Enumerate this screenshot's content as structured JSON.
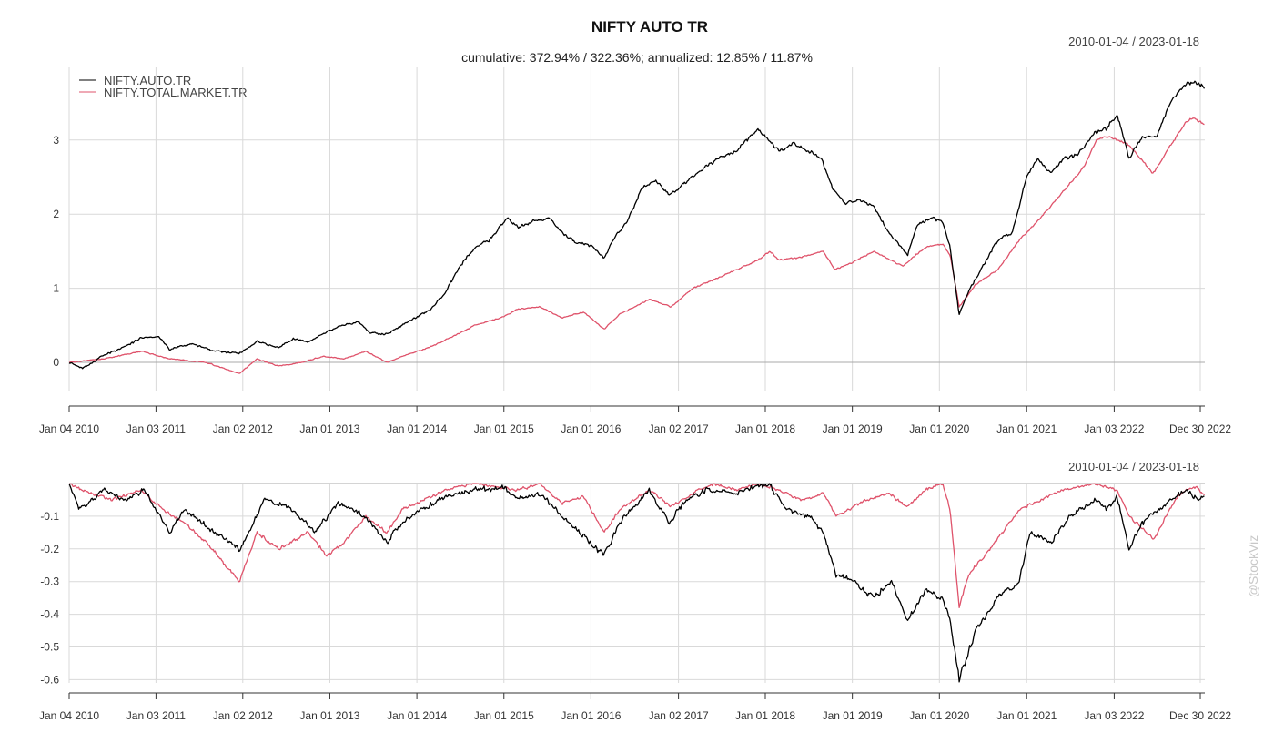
{
  "chart": {
    "title": "NIFTY AUTO TR",
    "subtitle": "cumulative: 372.94% / 322.36%; annualized: 12.85% / 11.87%",
    "date_range_top": "2010-01-04 / 2023-01-18",
    "date_range_bottom": "2010-01-04 / 2023-01-18",
    "watermark": "@StockViz"
  },
  "chart_data": [
    {
      "type": "line",
      "panel": "cumulative returns",
      "title": "NIFTY AUTO TR",
      "subtitle": "cumulative: 372.94% / 322.36%; annualized: 12.85% / 11.87%",
      "date_range": "2010-01-04 / 2023-01-18",
      "xlabel": "",
      "ylabel": "",
      "x_range": [
        "2010-01-04",
        "2023-01-18"
      ],
      "ylim": [
        -0.38,
        3.98
      ],
      "y_ticks": [
        0,
        1,
        2,
        3
      ],
      "x_tick_labels": [
        "Jan 04 2010",
        "Jan 03 2011",
        "Jan 02 2012",
        "Jan 01 2013",
        "Jan 01 2014",
        "Jan 01 2015",
        "Jan 01 2016",
        "Jan 02 2017",
        "Jan 01 2018",
        "Jan 01 2019",
        "Jan 01 2020",
        "Jan 01 2021",
        "Jan 03 2022",
        "Dec 30 2022"
      ],
      "x_tick_dates": [
        "2010-01-04",
        "2011-01-03",
        "2012-01-02",
        "2013-01-01",
        "2014-01-01",
        "2015-01-01",
        "2016-01-01",
        "2017-01-02",
        "2018-01-01",
        "2019-01-01",
        "2020-01-01",
        "2021-01-01",
        "2022-01-03",
        "2022-12-30"
      ],
      "grid": true,
      "legend_position": "top-left",
      "series": [
        {
          "name": "NIFTY.AUTO.TR",
          "color": "#000000",
          "x": [
            "2010-01-04",
            "2010-03-01",
            "2010-06-01",
            "2010-09-01",
            "2010-11-01",
            "2011-01-15",
            "2011-03-01",
            "2011-06-01",
            "2011-09-01",
            "2011-12-20",
            "2012-03-01",
            "2012-06-01",
            "2012-08-01",
            "2012-10-01",
            "2012-12-01",
            "2013-02-01",
            "2013-05-01",
            "2013-06-15",
            "2013-08-25",
            "2013-11-01",
            "2014-01-01",
            "2014-03-01",
            "2014-05-01",
            "2014-07-01",
            "2014-09-01",
            "2014-11-01",
            "2015-01-15",
            "2015-03-01",
            "2015-05-01",
            "2015-07-15",
            "2015-09-01",
            "2015-11-01",
            "2016-01-01",
            "2016-02-25",
            "2016-04-01",
            "2016-06-01",
            "2016-08-01",
            "2016-10-01",
            "2016-11-25",
            "2017-01-01",
            "2017-03-01",
            "2017-05-01",
            "2017-07-01",
            "2017-09-01",
            "2017-11-01",
            "2017-12-01",
            "2018-01-10",
            "2018-03-01",
            "2018-05-01",
            "2018-07-01",
            "2018-08-25",
            "2018-10-10",
            "2018-12-01",
            "2019-02-01",
            "2019-04-01",
            "2019-06-01",
            "2019-08-20",
            "2019-10-01",
            "2019-12-01",
            "2020-01-15",
            "2020-02-15",
            "2020-03-24",
            "2020-05-01",
            "2020-07-01",
            "2020-09-01",
            "2020-11-01",
            "2021-01-01",
            "2021-02-15",
            "2021-04-15",
            "2021-06-01",
            "2021-08-01",
            "2021-10-15",
            "2021-12-01",
            "2022-01-15",
            "2022-03-07",
            "2022-05-01",
            "2022-07-01",
            "2022-09-01",
            "2022-11-01",
            "2022-12-01",
            "2023-01-18"
          ],
          "values": [
            0.0,
            -0.08,
            0.1,
            0.22,
            0.33,
            0.35,
            0.18,
            0.25,
            0.16,
            0.12,
            0.28,
            0.2,
            0.32,
            0.28,
            0.38,
            0.48,
            0.55,
            0.4,
            0.38,
            0.5,
            0.62,
            0.72,
            0.95,
            1.3,
            1.55,
            1.65,
            1.95,
            1.82,
            1.9,
            1.95,
            1.75,
            1.62,
            1.58,
            1.4,
            1.65,
            1.9,
            2.35,
            2.45,
            2.25,
            2.35,
            2.5,
            2.65,
            2.78,
            2.85,
            3.05,
            3.15,
            3.02,
            2.85,
            2.95,
            2.85,
            2.75,
            2.35,
            2.15,
            2.2,
            2.1,
            1.75,
            1.45,
            1.85,
            1.95,
            1.9,
            1.55,
            0.65,
            0.95,
            1.3,
            1.65,
            1.75,
            2.5,
            2.75,
            2.55,
            2.75,
            2.8,
            3.1,
            3.15,
            3.35,
            2.75,
            3.05,
            3.05,
            3.55,
            3.75,
            3.8,
            3.7
          ]
        },
        {
          "name": "NIFTY.TOTAL.MARKET.TR",
          "color": "#df536b",
          "x": [
            "2010-01-04",
            "2010-06-01",
            "2010-11-01",
            "2011-03-01",
            "2011-08-01",
            "2011-12-20",
            "2012-03-01",
            "2012-06-01",
            "2012-09-01",
            "2012-12-01",
            "2013-03-01",
            "2013-06-01",
            "2013-08-28",
            "2013-11-01",
            "2014-02-01",
            "2014-05-01",
            "2014-09-01",
            "2015-01-01",
            "2015-03-01",
            "2015-06-01",
            "2015-09-01",
            "2015-12-01",
            "2016-02-25",
            "2016-05-01",
            "2016-09-01",
            "2016-12-01",
            "2017-03-01",
            "2017-06-01",
            "2017-09-01",
            "2017-12-01",
            "2018-01-20",
            "2018-03-01",
            "2018-06-01",
            "2018-09-01",
            "2018-10-20",
            "2019-01-01",
            "2019-04-01",
            "2019-08-01",
            "2019-11-01",
            "2020-01-15",
            "2020-02-15",
            "2020-03-24",
            "2020-06-01",
            "2020-09-01",
            "2020-12-01",
            "2021-03-01",
            "2021-06-01",
            "2021-09-01",
            "2021-10-20",
            "2021-12-01",
            "2022-03-01",
            "2022-06-15",
            "2022-09-01",
            "2022-11-01",
            "2022-12-01",
            "2023-01-18"
          ],
          "values": [
            0.0,
            0.05,
            0.15,
            0.05,
            0.0,
            -0.15,
            0.05,
            -0.05,
            0.0,
            0.08,
            0.05,
            0.15,
            0.0,
            0.08,
            0.18,
            0.3,
            0.5,
            0.62,
            0.72,
            0.75,
            0.6,
            0.68,
            0.45,
            0.65,
            0.85,
            0.75,
            1.0,
            1.12,
            1.25,
            1.38,
            1.5,
            1.38,
            1.42,
            1.5,
            1.25,
            1.35,
            1.5,
            1.3,
            1.55,
            1.6,
            1.45,
            0.75,
            1.05,
            1.25,
            1.65,
            1.95,
            2.3,
            2.65,
            3.0,
            3.05,
            2.95,
            2.55,
            2.95,
            3.25,
            3.3,
            3.2
          ]
        }
      ]
    },
    {
      "type": "line",
      "panel": "drawdowns",
      "title": "",
      "date_range": "2010-01-04 / 2023-01-18",
      "xlabel": "",
      "ylabel": "",
      "x_range": [
        "2010-01-04",
        "2023-01-18"
      ],
      "ylim": [
        -0.61,
        0.0
      ],
      "y_ticks": [
        -0.1,
        -0.2,
        -0.3,
        -0.4,
        -0.5,
        -0.6
      ],
      "y_tick_labels": [
        "-0.1",
        "-0.2",
        "-0.3",
        "-0.4",
        "-0.5",
        "-0.6"
      ],
      "x_tick_labels": [
        "Jan 04 2010",
        "Jan 03 2011",
        "Jan 02 2012",
        "Jan 01 2013",
        "Jan 01 2014",
        "Jan 01 2015",
        "Jan 01 2016",
        "Jan 02 2017",
        "Jan 01 2018",
        "Jan 01 2019",
        "Jan 01 2020",
        "Jan 01 2021",
        "Jan 03 2022",
        "Dec 30 2022"
      ],
      "x_tick_dates": [
        "2010-01-04",
        "2011-01-03",
        "2012-01-02",
        "2013-01-01",
        "2014-01-01",
        "2015-01-01",
        "2016-01-01",
        "2017-01-02",
        "2018-01-01",
        "2019-01-01",
        "2020-01-01",
        "2021-01-01",
        "2022-01-03",
        "2022-12-30"
      ],
      "grid": true,
      "series": [
        {
          "name": "NIFTY.AUTO.TR",
          "color": "#000000",
          "x": [
            "2010-01-04",
            "2010-02-15",
            "2010-06-01",
            "2010-09-01",
            "2010-11-15",
            "2011-03-01",
            "2011-05-01",
            "2011-08-01",
            "2011-12-20",
            "2012-04-01",
            "2012-08-01",
            "2012-11-01",
            "2013-02-01",
            "2013-06-01",
            "2013-08-28",
            "2013-11-01",
            "2014-01-15",
            "2014-05-01",
            "2014-09-01",
            "2015-01-01",
            "2015-03-01",
            "2015-06-01",
            "2015-09-01",
            "2016-02-25",
            "2016-05-01",
            "2016-09-01",
            "2016-11-25",
            "2017-02-01",
            "2017-05-01",
            "2017-09-01",
            "2017-12-01",
            "2018-01-15",
            "2018-04-01",
            "2018-07-01",
            "2018-09-01",
            "2018-10-25",
            "2019-01-01",
            "2019-04-01",
            "2019-06-15",
            "2019-08-20",
            "2019-11-01",
            "2020-01-15",
            "2020-02-15",
            "2020-03-24",
            "2020-06-01",
            "2020-09-01",
            "2020-12-01",
            "2021-01-15",
            "2021-04-15",
            "2021-07-01",
            "2021-10-15",
            "2021-12-01",
            "2022-01-15",
            "2022-03-07",
            "2022-05-01",
            "2022-07-15",
            "2022-09-15",
            "2022-11-01",
            "2022-12-15",
            "2023-01-18"
          ],
          "values": [
            0.0,
            -0.08,
            -0.02,
            -0.05,
            -0.02,
            -0.15,
            -0.08,
            -0.13,
            -0.2,
            -0.05,
            -0.08,
            -0.15,
            -0.06,
            -0.1,
            -0.18,
            -0.12,
            -0.08,
            -0.04,
            -0.02,
            -0.01,
            -0.05,
            -0.03,
            -0.1,
            -0.22,
            -0.12,
            -0.02,
            -0.12,
            -0.05,
            -0.02,
            -0.03,
            -0.01,
            0.0,
            -0.08,
            -0.1,
            -0.15,
            -0.28,
            -0.3,
            -0.35,
            -0.3,
            -0.42,
            -0.33,
            -0.35,
            -0.42,
            -0.6,
            -0.45,
            -0.35,
            -0.3,
            -0.15,
            -0.18,
            -0.1,
            -0.05,
            -0.08,
            -0.04,
            -0.2,
            -0.12,
            -0.08,
            -0.04,
            -0.02,
            -0.05,
            -0.04
          ]
        },
        {
          "name": "NIFTY.TOTAL.MARKET.TR",
          "color": "#df536b",
          "x": [
            "2010-01-04",
            "2010-03-01",
            "2010-07-01",
            "2010-11-01",
            "2011-02-01",
            "2011-05-01",
            "2011-08-01",
            "2011-12-20",
            "2012-03-01",
            "2012-06-01",
            "2012-10-01",
            "2012-12-20",
            "2013-03-01",
            "2013-06-01",
            "2013-08-28",
            "2013-11-01",
            "2014-02-01",
            "2014-05-01",
            "2014-09-01",
            "2015-03-01",
            "2015-06-01",
            "2015-09-01",
            "2015-12-01",
            "2016-02-25",
            "2016-05-01",
            "2016-09-01",
            "2016-12-01",
            "2017-03-01",
            "2017-06-01",
            "2017-09-01",
            "2017-12-01",
            "2018-03-01",
            "2018-06-01",
            "2018-09-01",
            "2018-10-25",
            "2019-02-01",
            "2019-06-01",
            "2019-08-20",
            "2019-11-01",
            "2020-01-15",
            "2020-02-15",
            "2020-03-24",
            "2020-05-01",
            "2020-08-01",
            "2020-10-01",
            "2020-12-01",
            "2021-03-01",
            "2021-06-01",
            "2021-10-15",
            "2022-01-15",
            "2022-03-07",
            "2022-06-20",
            "2022-09-15",
            "2022-11-01",
            "2022-12-15",
            "2023-01-18"
          ],
          "values": [
            0.0,
            -0.02,
            -0.05,
            -0.02,
            -0.08,
            -0.12,
            -0.18,
            -0.3,
            -0.15,
            -0.2,
            -0.15,
            -0.22,
            -0.18,
            -0.1,
            -0.15,
            -0.08,
            -0.05,
            -0.02,
            0.0,
            -0.02,
            0.0,
            -0.06,
            -0.04,
            -0.15,
            -0.08,
            -0.02,
            -0.07,
            -0.03,
            0.0,
            -0.02,
            0.0,
            -0.02,
            -0.05,
            -0.03,
            -0.1,
            -0.06,
            -0.03,
            -0.07,
            -0.02,
            0.0,
            -0.08,
            -0.38,
            -0.28,
            -0.2,
            -0.14,
            -0.08,
            -0.05,
            -0.02,
            0.0,
            -0.02,
            -0.1,
            -0.17,
            -0.05,
            -0.02,
            -0.01,
            -0.04
          ]
        }
      ]
    }
  ]
}
